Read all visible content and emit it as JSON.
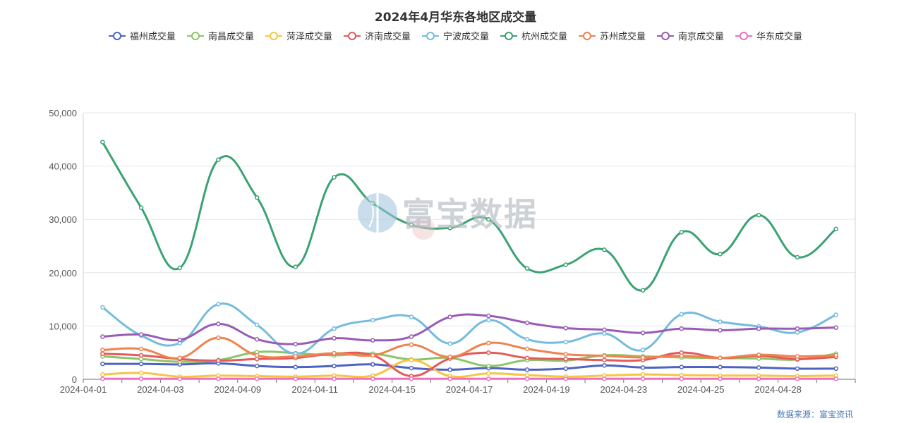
{
  "source_text": "数据来源：富宝资讯",
  "watermark": "富宝数据",
  "chart_data": {
    "type": "line",
    "title": "2024年4月华东各地区成交量",
    "xlabel": "",
    "ylabel": "",
    "ylim": [
      0,
      50000
    ],
    "yticks": [
      "0",
      "10,000",
      "20,000",
      "30,000",
      "40,000",
      "50,000"
    ],
    "grid": true,
    "legend_position": "top-center",
    "smooth": true,
    "x": [
      "2024-04-01",
      "2024-04-02",
      "2024-04-03",
      "2024-04-08",
      "2024-04-09",
      "2024-04-10",
      "2024-04-11",
      "2024-04-12",
      "2024-04-15",
      "2024-04-16",
      "2024-04-17",
      "2024-04-18",
      "2024-04-19",
      "2024-04-22",
      "2024-04-23",
      "2024-04-24",
      "2024-04-25",
      "2024-04-26",
      "2024-04-28",
      "2024-04-29"
    ],
    "x_tick_labels": [
      "2024-04-01",
      "2024-04-03",
      "2024-04-09",
      "2024-04-11",
      "2024-04-15",
      "2024-04-17",
      "2024-04-19",
      "2024-04-23",
      "2024-04-25",
      "2024-04-28"
    ],
    "series": [
      {
        "name": "福州成交量",
        "color": "#4d63c4",
        "values": [
          2900,
          2900,
          2800,
          3000,
          2500,
          2300,
          2500,
          2800,
          2100,
          1800,
          2100,
          1800,
          2000,
          2600,
          2200,
          2300,
          2300,
          2200,
          2000,
          2000
        ]
      },
      {
        "name": "南昌成交量",
        "color": "#8cc569",
        "values": [
          4300,
          3800,
          3300,
          3600,
          5100,
          4900,
          4500,
          4800,
          3700,
          4000,
          2500,
          3600,
          3500,
          4500,
          4300,
          4100,
          4000,
          3900,
          3700,
          4800
        ]
      },
      {
        "name": "菏泽成交量",
        "color": "#f7c443",
        "values": [
          900,
          1200,
          500,
          700,
          600,
          500,
          700,
          700,
          3600,
          600,
          1100,
          800,
          500,
          700,
          900,
          800,
          700,
          700,
          600,
          700
        ]
      },
      {
        "name": "济南成交量",
        "color": "#e45a5a",
        "values": [
          4800,
          4500,
          3800,
          3500,
          3800,
          4000,
          4800,
          4500,
          600,
          3900,
          5000,
          4000,
          3800,
          3600,
          3600,
          5000,
          4000,
          4400,
          3800,
          4200
        ]
      },
      {
        "name": "宁波成交量",
        "color": "#74bcdd",
        "values": [
          13500,
          8200,
          6800,
          14100,
          10200,
          4800,
          9500,
          11100,
          11700,
          6700,
          11100,
          7500,
          7000,
          8600,
          5500,
          12200,
          10800,
          9900,
          8800,
          12100
        ]
      },
      {
        "name": "杭州成交量",
        "color": "#3ba272",
        "values": [
          44500,
          32200,
          20900,
          41200,
          34100,
          21100,
          37900,
          33000,
          29000,
          28400,
          30000,
          20800,
          21500,
          24300,
          16700,
          27600,
          23500,
          30800,
          22900,
          28200
        ]
      },
      {
        "name": "苏州成交量",
        "color": "#f0824e",
        "values": [
          5500,
          5700,
          4000,
          7800,
          4500,
          4300,
          4900,
          4500,
          6500,
          4200,
          6800,
          5700,
          4700,
          4400,
          4100,
          4400,
          4000,
          4600,
          4300,
          4500
        ]
      },
      {
        "name": "南京成交量",
        "color": "#9a5bb5",
        "values": [
          8000,
          8400,
          7400,
          10400,
          7500,
          6600,
          7700,
          7300,
          8000,
          11700,
          11900,
          10600,
          9600,
          9300,
          8700,
          9500,
          9200,
          9500,
          9500,
          9700
        ]
      },
      {
        "name": "华东成交量",
        "color": "#ee6fc1",
        "values": [
          100,
          100,
          100,
          100,
          100,
          100,
          100,
          100,
          100,
          100,
          100,
          100,
          100,
          100,
          100,
          100,
          100,
          100,
          100,
          100
        ]
      }
    ]
  }
}
